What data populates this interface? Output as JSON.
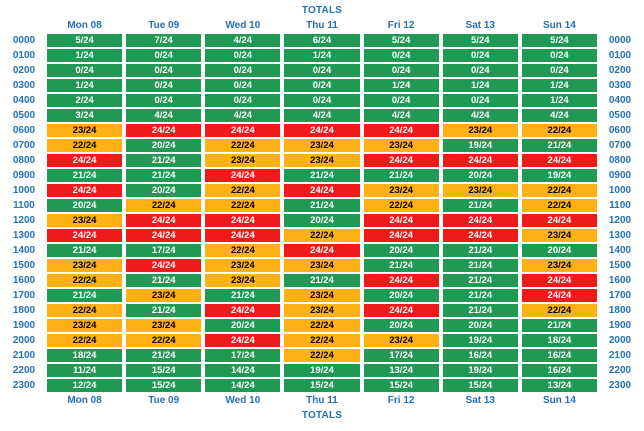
{
  "ui": {
    "title_top": "TOTALS",
    "title_bottom": "TOTALS"
  },
  "colors": {
    "green": "#1f9954",
    "orange": "#ffb012",
    "red": "#f01a1a",
    "header_blue": "#2272b5",
    "background": "#ffffff",
    "text_on_green": "#ffffff",
    "text_on_orange": "#000000",
    "text_on_red": "#ffffff"
  },
  "chart_data": {
    "type": "heatmap",
    "title": "TOTALS",
    "columns": [
      "Mon 08",
      "Tue 09",
      "Wed 10",
      "Thu 11",
      "Fri 12",
      "Sat 13",
      "Sun 14"
    ],
    "rows": [
      "0000",
      "0100",
      "0200",
      "0300",
      "0400",
      "0500",
      "0600",
      "0700",
      "0800",
      "0900",
      "1000",
      "1100",
      "1200",
      "1300",
      "1400",
      "1500",
      "1600",
      "1700",
      "1800",
      "1900",
      "2000",
      "2100",
      "2200",
      "2300"
    ],
    "row_labels_shown_on_both_sides": true,
    "column_labels_shown_top_and_bottom": true,
    "denominator": 24,
    "cell_format": "{value}/{denominator}",
    "values": [
      [
        5,
        7,
        4,
        6,
        5,
        5,
        5
      ],
      [
        1,
        0,
        0,
        1,
        0,
        0,
        0
      ],
      [
        0,
        0,
        0,
        0,
        0,
        0,
        0
      ],
      [
        1,
        0,
        0,
        0,
        1,
        1,
        1
      ],
      [
        2,
        0,
        0,
        0,
        0,
        0,
        1
      ],
      [
        3,
        4,
        4,
        4,
        4,
        4,
        4
      ],
      [
        23,
        24,
        24,
        24,
        24,
        23,
        22
      ],
      [
        22,
        20,
        22,
        23,
        23,
        19,
        21
      ],
      [
        24,
        21,
        23,
        23,
        24,
        24,
        24
      ],
      [
        21,
        21,
        24,
        21,
        21,
        20,
        19
      ],
      [
        24,
        20,
        22,
        24,
        23,
        23,
        22
      ],
      [
        20,
        22,
        22,
        21,
        22,
        21,
        22
      ],
      [
        23,
        24,
        24,
        20,
        24,
        24,
        24
      ],
      [
        24,
        24,
        24,
        22,
        24,
        24,
        23
      ],
      [
        21,
        17,
        22,
        24,
        20,
        21,
        20
      ],
      [
        23,
        24,
        23,
        23,
        21,
        21,
        23
      ],
      [
        22,
        21,
        23,
        21,
        24,
        21,
        24
      ],
      [
        21,
        23,
        21,
        23,
        20,
        21,
        24
      ],
      [
        22,
        21,
        24,
        23,
        24,
        21,
        22
      ],
      [
        23,
        23,
        20,
        22,
        20,
        20,
        21
      ],
      [
        22,
        22,
        24,
        22,
        23,
        19,
        18
      ],
      [
        18,
        21,
        17,
        22,
        17,
        16,
        16
      ],
      [
        11,
        15,
        14,
        19,
        13,
        19,
        16
      ],
      [
        12,
        15,
        14,
        15,
        15,
        15,
        13
      ]
    ],
    "color_rule": {
      "red_equals": 24,
      "orange_min": 22,
      "green_max": 21
    },
    "legend_position": "none",
    "grid": false
  }
}
